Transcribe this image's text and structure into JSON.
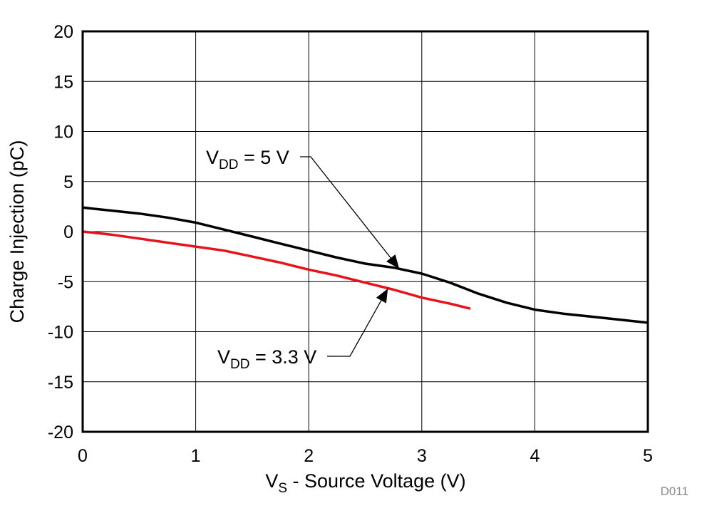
{
  "chart_data": {
    "type": "line",
    "title": "",
    "xlabel": {
      "main": "V",
      "sub": "S",
      "rest": " - Source Voltage (V)"
    },
    "ylabel": "Charge Injection (pC)",
    "xlim": [
      0,
      5
    ],
    "ylim": [
      -20,
      20
    ],
    "xticks": [
      0,
      1,
      2,
      3,
      4,
      5
    ],
    "yticks": [
      -20,
      -15,
      -10,
      -5,
      0,
      5,
      10,
      15,
      20
    ],
    "xtick_labels": [
      "0",
      "1",
      "2",
      "3",
      "4",
      "5"
    ],
    "ytick_labels": [
      "-20",
      "-15",
      "-10",
      "-5",
      "0",
      "5",
      "10",
      "15",
      "20"
    ],
    "grid": true,
    "series": [
      {
        "name": "VDD = 5 V",
        "color": "#000000",
        "x": [
          0,
          0.25,
          0.5,
          0.75,
          1.0,
          1.25,
          1.5,
          1.75,
          2.0,
          2.25,
          2.5,
          2.75,
          3.0,
          3.25,
          3.5,
          3.75,
          4.0,
          4.25,
          4.5,
          4.75,
          5.0
        ],
        "y": [
          2.4,
          2.1,
          1.8,
          1.4,
          0.9,
          0.2,
          -0.5,
          -1.2,
          -1.9,
          -2.6,
          -3.2,
          -3.6,
          -4.2,
          -5.1,
          -6.2,
          -7.1,
          -7.8,
          -8.2,
          -8.5,
          -8.8,
          -9.1
        ]
      },
      {
        "name": "VDD = 3.3 V",
        "color": "#e8131a",
        "x": [
          0,
          0.25,
          0.5,
          0.75,
          1.0,
          1.25,
          1.5,
          1.75,
          2.0,
          2.25,
          2.5,
          2.75,
          3.0,
          3.25,
          3.43
        ],
        "y": [
          0,
          -0.3,
          -0.7,
          -1.1,
          -1.5,
          -1.9,
          -2.5,
          -3.1,
          -3.8,
          -4.4,
          -5.1,
          -5.8,
          -6.6,
          -7.2,
          -7.7
        ]
      }
    ],
    "annotations": [
      {
        "main": "V",
        "sub": "DD",
        "rest": " = 5 V",
        "series": 0,
        "point": [
          2.8,
          -3.7
        ]
      },
      {
        "main": "V",
        "sub": "DD",
        "rest": " = 3.3 V",
        "series": 1,
        "point": [
          2.7,
          -5.7
        ]
      }
    ],
    "figure_id": "D011"
  }
}
